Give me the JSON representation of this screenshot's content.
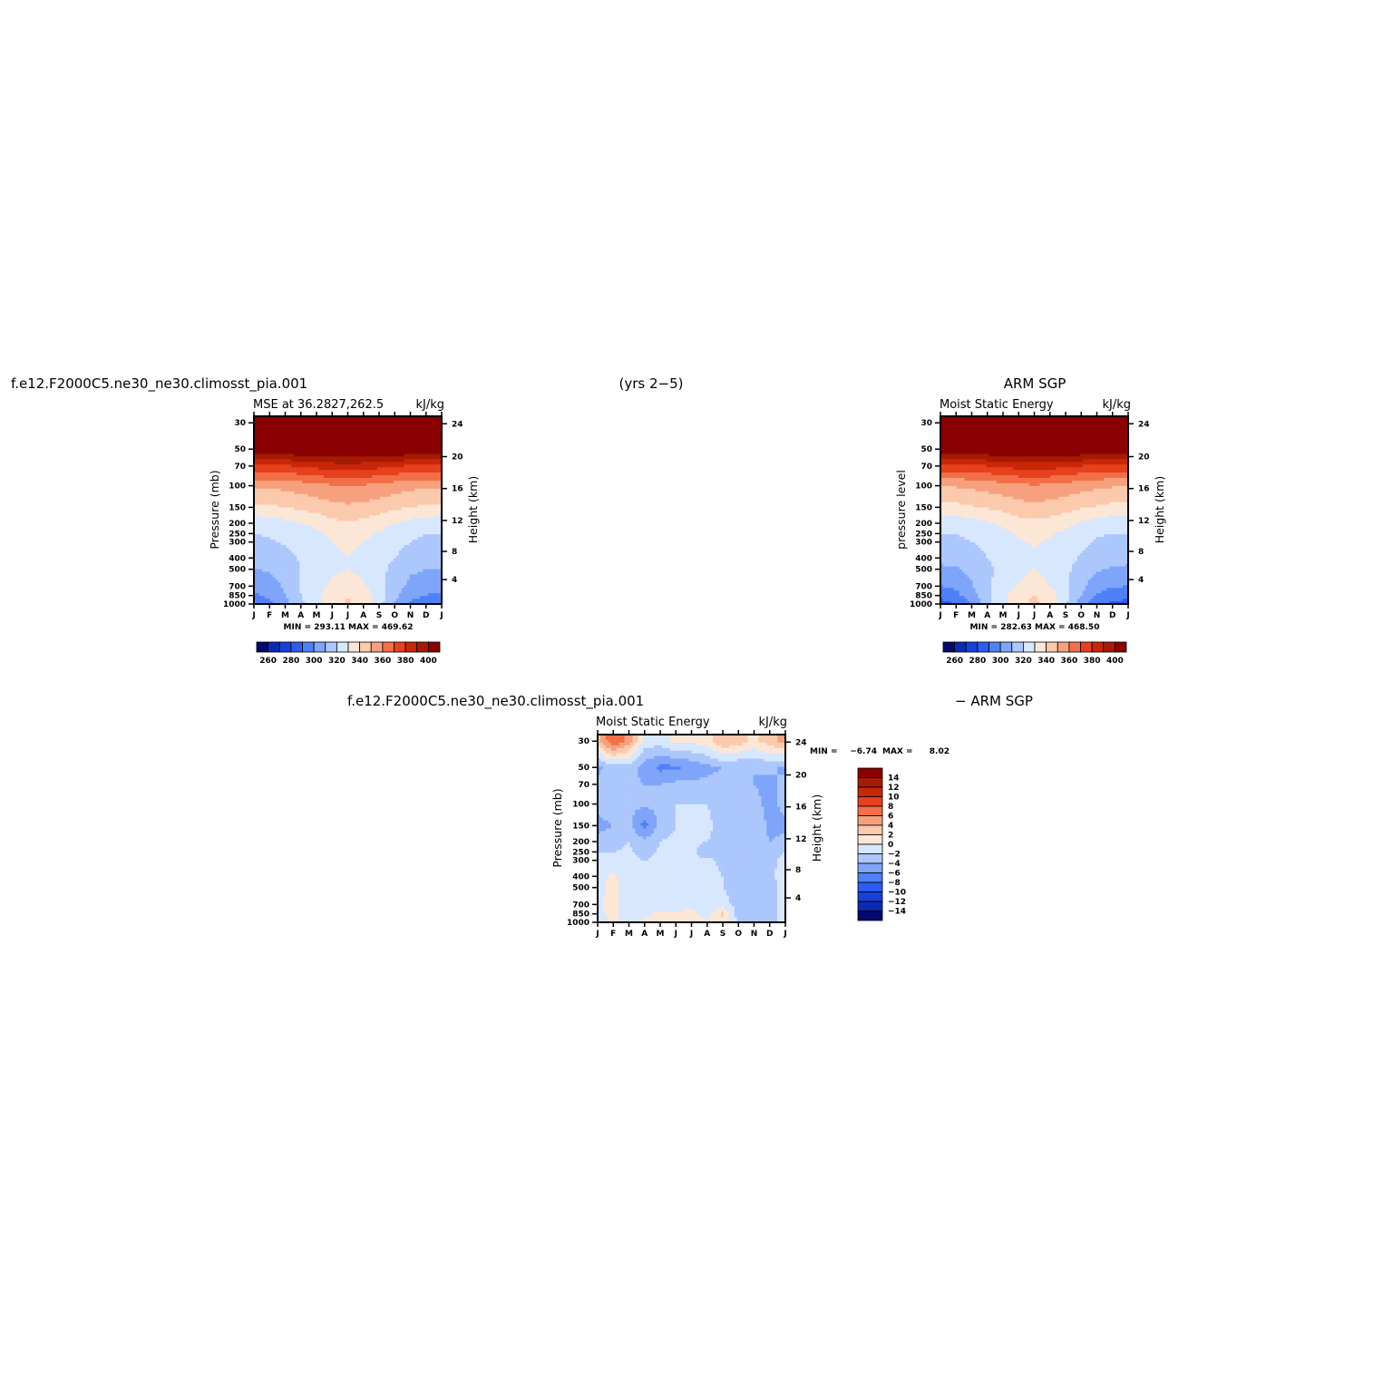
{
  "figure": {
    "top_left_title": "f.e12.F2000C5.ne30_ne30.climosst_pia.001",
    "top_center_title": "(yrs 2−5)",
    "top_right_title": "ARM SGP",
    "diff_title_left": "f.e12.F2000C5.ne30_ne30.climosst_pia.001",
    "diff_title_right": "− ARM SGP"
  },
  "colors": {
    "abs_levels": [
      "#020a6e",
      "#0a2ab4",
      "#1a40dc",
      "#2c5cf0",
      "#4f80f8",
      "#7ea5fa",
      "#acc7fc",
      "#d7e7fe",
      "#fce7d7",
      "#fbc9ac",
      "#f7a07e",
      "#f26f48",
      "#e6401c",
      "#c92708",
      "#a51b04",
      "#8b0000"
    ],
    "diff_levels": [
      "#020a6e",
      "#0a2ab4",
      "#1a40dc",
      "#2c5cf0",
      "#4f80f8",
      "#7ea5fa",
      "#acc7fc",
      "#d7e7fe",
      "#fce7d7",
      "#fbc9ac",
      "#f7a07e",
      "#f26f48",
      "#e6401c",
      "#c92708",
      "#a51b04",
      "#8b0000"
    ]
  },
  "chart_data": [
    {
      "type": "heatmap",
      "panel": "model",
      "subtitle_left": "MSE at 36.2827,262.5",
      "subtitle_right": "kJ/kg",
      "ylabel": "Pressure (mb)",
      "ylabel_right": "Height (km)",
      "x_ticks": [
        "J",
        "F",
        "M",
        "A",
        "M",
        "J",
        "J",
        "A",
        "S",
        "O",
        "N",
        "D",
        "J"
      ],
      "y_ticks": [
        "30",
        "50",
        "70",
        "100",
        "150",
        "200",
        "250",
        "300",
        "400",
        "500",
        "700",
        "850",
        "1000"
      ],
      "y_ticks_right": [
        "24",
        "20",
        "16",
        "12",
        "8",
        "4"
      ],
      "stats": "MIN = 293.11 MAX = 469.62",
      "colorbar_labels": [
        "260",
        "280",
        "300",
        "320",
        "340",
        "360",
        "380",
        "400"
      ],
      "levels": [
        250,
        260,
        270,
        280,
        290,
        300,
        310,
        320,
        330,
        340,
        350,
        360,
        370,
        380,
        390,
        400
      ],
      "months": [
        "J",
        "F",
        "M",
        "A",
        "M",
        "J",
        "J",
        "A",
        "S",
        "O",
        "N",
        "D",
        "J"
      ],
      "pressure": [
        1000,
        850,
        700,
        500,
        400,
        300,
        250,
        200,
        150,
        100,
        70,
        50,
        30
      ],
      "values": [
        [
          293,
          297,
          306,
          318,
          326,
          336,
          341,
          336,
          324,
          309,
          298,
          295,
          293
        ],
        [
          298,
          302,
          310,
          320,
          328,
          336,
          340,
          336,
          325,
          313,
          303,
          300,
          298
        ],
        [
          303,
          305,
          312,
          320,
          326,
          332,
          334,
          331,
          324,
          315,
          307,
          304,
          303
        ],
        [
          310,
          311,
          315,
          320,
          324,
          328,
          330,
          328,
          323,
          317,
          312,
          310,
          310
        ],
        [
          314,
          315,
          317,
          321,
          324,
          328,
          330,
          328,
          324,
          320,
          316,
          314,
          314
        ],
        [
          318,
          319,
          321,
          323,
          326,
          330,
          332,
          330,
          327,
          323,
          320,
          318,
          318
        ],
        [
          320,
          321,
          322,
          325,
          328,
          332,
          334,
          332,
          329,
          325,
          322,
          320,
          320
        ],
        [
          324,
          325,
          327,
          330,
          333,
          337,
          339,
          337,
          334,
          330,
          327,
          325,
          324
        ],
        [
          338,
          338,
          340,
          342,
          344,
          347,
          348,
          347,
          345,
          342,
          340,
          338,
          338
        ],
        [
          352,
          352,
          353,
          355,
          357,
          359,
          360,
          359,
          357,
          355,
          353,
          352,
          352
        ],
        [
          378,
          378,
          379,
          381,
          383,
          385,
          386,
          385,
          383,
          381,
          379,
          378,
          378
        ],
        [
          410,
          410,
          410,
          412,
          413,
          414,
          415,
          414,
          413,
          412,
          411,
          410,
          410
        ],
        [
          460,
          460,
          461,
          462,
          463,
          465,
          469.62,
          465,
          463,
          462,
          461,
          460,
          460
        ]
      ]
    },
    {
      "type": "heatmap",
      "panel": "obs",
      "subtitle_left": "Moist Static Energy",
      "subtitle_right": "kJ/kg",
      "ylabel": "pressure level",
      "ylabel_right": "Height (km)",
      "x_ticks": [
        "J",
        "F",
        "M",
        "A",
        "M",
        "J",
        "J",
        "A",
        "S",
        "O",
        "N",
        "D",
        "J"
      ],
      "y_ticks": [
        "30",
        "50",
        "70",
        "100",
        "150",
        "200",
        "250",
        "300",
        "400",
        "500",
        "700",
        "850",
        "1000"
      ],
      "y_ticks_right": [
        "24",
        "20",
        "16",
        "12",
        "8",
        "4"
      ],
      "stats": "MIN = 282.63 MAX = 468.50",
      "colorbar_labels": [
        "260",
        "280",
        "300",
        "320",
        "340",
        "360",
        "380",
        "400"
      ],
      "levels": [
        250,
        260,
        270,
        280,
        290,
        300,
        310,
        320,
        330,
        340,
        350,
        360,
        370,
        380,
        390,
        400
      ],
      "months": [
        "J",
        "F",
        "M",
        "A",
        "M",
        "J",
        "J",
        "A",
        "S",
        "O",
        "N",
        "D",
        "J"
      ],
      "pressure": [
        1000,
        850,
        700,
        500,
        400,
        300,
        250,
        200,
        150,
        100,
        70,
        50,
        30
      ],
      "values": [
        [
          286,
          290,
          300,
          316,
          328,
          338,
          342,
          338,
          322,
          305,
          292,
          288,
          286
        ],
        [
          293,
          297,
          306,
          318,
          327,
          336,
          340,
          335,
          323,
          310,
          299,
          295,
          293
        ],
        [
          300,
          302,
          309,
          318,
          325,
          331,
          334,
          330,
          322,
          313,
          304,
          301,
          300
        ],
        [
          308,
          309,
          313,
          318,
          323,
          327,
          330,
          327,
          322,
          316,
          311,
          309,
          308
        ],
        [
          313,
          313,
          316,
          320,
          323,
          327,
          329,
          327,
          323,
          319,
          315,
          313,
          313
        ],
        [
          317,
          318,
          320,
          322,
          325,
          329,
          331,
          329,
          326,
          322,
          319,
          317,
          317
        ],
        [
          320,
          320,
          322,
          324,
          327,
          331,
          333,
          331,
          328,
          324,
          321,
          320,
          320
        ],
        [
          324,
          324,
          326,
          329,
          332,
          336,
          338,
          336,
          333,
          329,
          326,
          324,
          324
        ],
        [
          337,
          337,
          339,
          341,
          343,
          346,
          347,
          346,
          344,
          341,
          339,
          337,
          337
        ],
        [
          351,
          351,
          352,
          354,
          356,
          358,
          359,
          358,
          356,
          354,
          352,
          351,
          351
        ],
        [
          377,
          377,
          378,
          380,
          382,
          384,
          385,
          384,
          382,
          380,
          378,
          377,
          377
        ],
        [
          409,
          409,
          409,
          411,
          412,
          413,
          414,
          413,
          412,
          411,
          410,
          409,
          409
        ],
        [
          458,
          459,
          460,
          461,
          462,
          464,
          468.5,
          464,
          462,
          461,
          460,
          459,
          458
        ]
      ]
    },
    {
      "type": "heatmap",
      "panel": "difference",
      "subtitle_left": "Moist Static Energy",
      "subtitle_right": "kJ/kg",
      "ylabel": "Pressure (mb)",
      "ylabel_right": "Height (km)",
      "x_ticks": [
        "J",
        "F",
        "M",
        "A",
        "M",
        "J",
        "J",
        "A",
        "S",
        "O",
        "N",
        "D",
        "J"
      ],
      "y_ticks": [
        "30",
        "50",
        "70",
        "100",
        "150",
        "200",
        "250",
        "300",
        "400",
        "500",
        "700",
        "850",
        "1000"
      ],
      "y_ticks_right": [
        "24",
        "20",
        "16",
        "12",
        "8",
        "4"
      ],
      "stats_label": "MIN =",
      "stats_min": "−6.74",
      "stats_max_label": "MAX =",
      "stats_max": "8.02",
      "colorbar_labels": [
        "14",
        "12",
        "10",
        "8",
        "6",
        "4",
        "2",
        "0",
        "−2",
        "−4",
        "−6",
        "−8",
        "−10",
        "−12",
        "−14"
      ],
      "levels": [
        -16,
        -14,
        -12,
        -10,
        -8,
        -6,
        -4,
        -2,
        0,
        2,
        4,
        6,
        8,
        10,
        12,
        14
      ],
      "months": [
        "J",
        "F",
        "M",
        "A",
        "M",
        "J",
        "J",
        "A",
        "S",
        "O",
        "N",
        "D",
        "J"
      ],
      "pressure": [
        1000,
        850,
        700,
        500,
        400,
        300,
        250,
        200,
        150,
        100,
        70,
        50,
        30
      ],
      "values": [
        [
          -1,
          0.5,
          -1,
          0.5,
          0.5,
          0.5,
          1,
          0.5,
          1.5,
          -2.5,
          -3,
          -3,
          -1
        ],
        [
          -0.5,
          0.5,
          -1,
          -0.5,
          0.5,
          0.5,
          0.5,
          -1,
          2.5,
          -3,
          -3,
          -3.5,
          -0.5
        ],
        [
          -0.5,
          1,
          -1.5,
          -1.5,
          -1,
          -1,
          -0.5,
          -1,
          -1,
          -3,
          -3,
          -3.5,
          -0.5
        ],
        [
          -1,
          1,
          -1.5,
          -1.5,
          -1.5,
          -1,
          -1.5,
          -1.5,
          -2,
          -3,
          -3,
          -3,
          -1
        ],
        [
          -1,
          0.5,
          -1.5,
          -1.5,
          -1.5,
          -1.5,
          -1.5,
          -1.5,
          -2,
          -3,
          -2.5,
          -2.5,
          -1
        ],
        [
          -1.5,
          -1,
          -1.5,
          -2,
          -1.5,
          -1.5,
          -2,
          -1.5,
          -2.5,
          -3,
          -2.5,
          -2.5,
          -1.5
        ],
        [
          -2,
          -2,
          -1.5,
          -3,
          -1.5,
          -1.5,
          -1.5,
          -3,
          -2.5,
          -2.5,
          -2.5,
          -3,
          -2
        ],
        [
          -3.5,
          -3,
          -2,
          -3.5,
          -2,
          -1.5,
          -1.5,
          -2,
          -2.5,
          -2.5,
          -2.5,
          -4,
          -3.5
        ],
        [
          -4.5,
          -4,
          -3.5,
          -6.74,
          -3.5,
          -2,
          -1.5,
          -1.5,
          -3,
          -3,
          -2.5,
          -4.5,
          -4.5
        ],
        [
          -3.5,
          -3,
          -3.5,
          -3.5,
          -3.5,
          -2,
          -2,
          -2,
          -3,
          -3.5,
          -3.5,
          -4.5,
          -3.5
        ],
        [
          -3.5,
          -3.5,
          -3.5,
          -4,
          -4,
          -3.5,
          -3.5,
          -3.5,
          -3.5,
          -4,
          -4,
          -4.5,
          -3.5
        ],
        [
          -4.5,
          -3,
          -3,
          -5,
          -6.5,
          -6.5,
          -5.5,
          -4.5,
          -4,
          -4,
          -4,
          -3.5,
          -4.5
        ],
        [
          3,
          8.02,
          5,
          -1,
          -1,
          0.5,
          0.5,
          1,
          4,
          3,
          1.5,
          3,
          5
        ]
      ]
    }
  ]
}
